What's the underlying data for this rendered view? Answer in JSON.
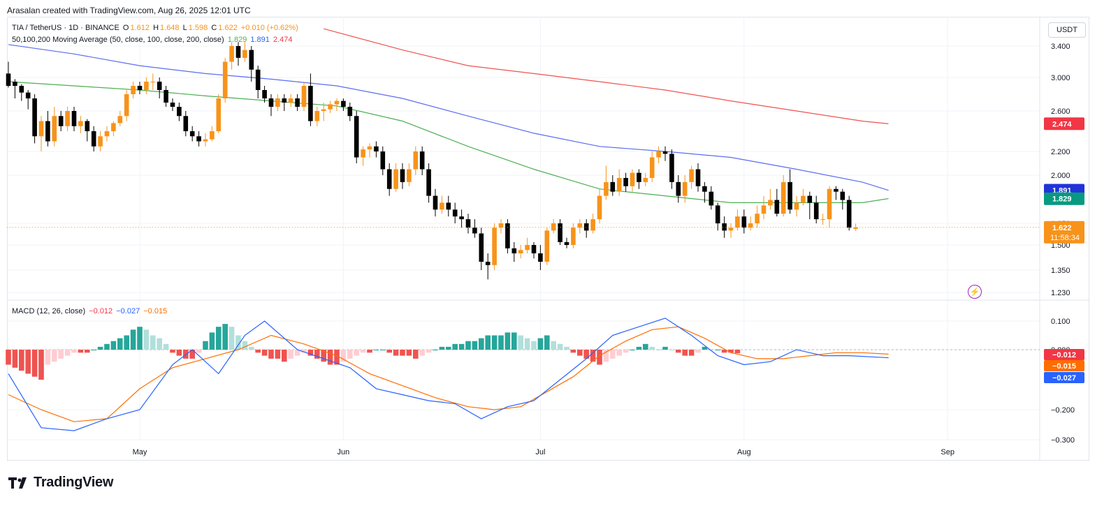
{
  "header": {
    "text": "Arasalan created with TradingView.com, Aug 26, 2025 12:01 UTC"
  },
  "symbol": {
    "name": "TIA / TetherUS · 1D · BINANCE",
    "o_label": "O",
    "o": "1.612",
    "h_label": "H",
    "h": "1.648",
    "l_label": "L",
    "l": "1.598",
    "c_label": "C",
    "c": "1.622",
    "change": "+0.010 (+0.62%)"
  },
  "ma_legend": {
    "label": "50,100,200 Moving Average (50, close, 100, close, 200, close)",
    "ma50": "1.829",
    "ma100": "1.891",
    "ma200": "2.474"
  },
  "macd_legend": {
    "label": "MACD (12, 26, close)",
    "hist": "−0.012",
    "macd": "−0.027",
    "signal": "−0.015"
  },
  "currency_button": "USDT",
  "brand": "TradingView",
  "colors": {
    "up": "#f7931a",
    "down": "#000000",
    "ma50": "#4caf50",
    "ma100": "#5b6cf0",
    "ma200": "#f0524f",
    "macd": "#2962ff",
    "signal": "#ff6d00",
    "hist_pos_strong": "#26a69a",
    "hist_pos_weak": "#b2dfdb",
    "hist_neg_strong": "#ef5350",
    "hist_neg_weak": "#ffcdd2"
  },
  "price_badges": {
    "ma200": {
      "value": "2.474",
      "color": "#f23645"
    },
    "ma100": {
      "value": "1.891",
      "color": "#2133d9"
    },
    "ma50": {
      "value": "1.829",
      "color": "#089981"
    },
    "last": {
      "value": "1.622",
      "countdown": "11:58:34",
      "color": "#f7931a"
    }
  },
  "macd_badges": [
    {
      "value": "−0.012",
      "color": "#f23645"
    },
    {
      "value": "−0.015",
      "color": "#ff6d00"
    },
    {
      "value": "−0.027",
      "color": "#2962ff"
    }
  ],
  "chart_data": {
    "type": "candlestick",
    "price_axis": {
      "ticks": [
        3.4,
        3.0,
        2.6,
        2.2,
        2.0,
        1.65,
        1.5,
        1.35,
        1.23
      ],
      "labels": [
        "3.400",
        "3.000",
        "2.600",
        "2.200",
        "2.000",
        "1.650",
        "1.500",
        "1.350",
        "1.230"
      ]
    },
    "macd_axis": {
      "ticks": [
        0.1,
        0.0,
        -0.2,
        -0.3
      ],
      "labels": [
        "0.100",
        "0.000",
        "−0.200",
        "−0.300"
      ]
    },
    "time_axis": {
      "labels": [
        "May",
        "Jun",
        "Jul",
        "Aug",
        "Sep"
      ],
      "label_days": [
        20,
        51,
        81,
        112,
        143
      ]
    },
    "candles": [
      [
        3.05,
        2.9,
        3.2,
        2.88
      ],
      [
        2.95,
        2.9,
        2.98,
        2.75
      ],
      [
        2.9,
        2.82,
        2.92,
        2.72
      ],
      [
        2.82,
        2.75,
        2.85,
        2.62
      ],
      [
        2.75,
        2.35,
        2.8,
        2.28
      ],
      [
        2.35,
        2.5,
        2.55,
        2.2
      ],
      [
        2.5,
        2.3,
        2.6,
        2.25
      ],
      [
        2.3,
        2.55,
        2.65,
        2.25
      ],
      [
        2.55,
        2.45,
        2.6,
        2.4
      ],
      [
        2.45,
        2.6,
        2.65,
        2.4
      ],
      [
        2.6,
        2.45,
        2.65,
        2.4
      ],
      [
        2.45,
        2.5,
        2.55,
        2.38
      ],
      [
        2.5,
        2.4,
        2.52,
        2.3
      ],
      [
        2.4,
        2.25,
        2.45,
        2.2
      ],
      [
        2.25,
        2.35,
        2.4,
        2.2
      ],
      [
        2.35,
        2.4,
        2.45,
        2.3
      ],
      [
        2.4,
        2.48,
        2.5,
        2.35
      ],
      [
        2.48,
        2.55,
        2.6,
        2.45
      ],
      [
        2.55,
        2.8,
        2.85,
        2.5
      ],
      [
        2.8,
        2.9,
        2.95,
        2.75
      ],
      [
        2.9,
        2.85,
        2.95,
        2.8
      ],
      [
        2.85,
        2.95,
        3.0,
        2.8
      ],
      [
        2.95,
        2.95,
        3.05,
        2.85
      ],
      [
        2.95,
        2.85,
        3.0,
        2.75
      ],
      [
        2.85,
        2.7,
        2.9,
        2.65
      ],
      [
        2.7,
        2.65,
        2.75,
        2.6
      ],
      [
        2.65,
        2.55,
        2.7,
        2.5
      ],
      [
        2.55,
        2.4,
        2.6,
        2.35
      ],
      [
        2.4,
        2.35,
        2.45,
        2.3
      ],
      [
        2.35,
        2.3,
        2.4,
        2.25
      ],
      [
        2.3,
        2.32,
        2.38,
        2.25
      ],
      [
        2.32,
        2.4,
        2.45,
        2.3
      ],
      [
        2.4,
        2.75,
        2.8,
        2.38
      ],
      [
        2.75,
        3.2,
        3.25,
        2.7
      ],
      [
        3.2,
        3.4,
        3.45,
        3.1
      ],
      [
        3.4,
        3.25,
        3.45,
        3.15
      ],
      [
        3.25,
        3.35,
        3.45,
        3.2
      ],
      [
        3.35,
        3.1,
        3.4,
        2.95
      ],
      [
        3.1,
        2.85,
        3.15,
        2.75
      ],
      [
        2.85,
        2.75,
        2.9,
        2.7
      ],
      [
        2.75,
        2.65,
        2.8,
        2.55
      ],
      [
        2.65,
        2.75,
        2.8,
        2.6
      ],
      [
        2.75,
        2.7,
        2.8,
        2.6
      ],
      [
        2.7,
        2.75,
        2.8,
        2.65
      ],
      [
        2.75,
        2.65,
        2.8,
        2.6
      ],
      [
        2.65,
        2.9,
        2.95,
        2.6
      ],
      [
        2.9,
        2.5,
        3.05,
        2.45
      ],
      [
        2.5,
        2.6,
        2.65,
        2.45
      ],
      [
        2.6,
        2.62,
        2.7,
        2.5
      ],
      [
        2.62,
        2.68,
        2.72,
        2.58
      ],
      [
        2.68,
        2.72,
        2.75,
        2.6
      ],
      [
        2.72,
        2.65,
        2.75,
        2.6
      ],
      [
        2.65,
        2.55,
        2.7,
        2.5
      ],
      [
        2.55,
        2.15,
        2.6,
        2.1
      ],
      [
        2.15,
        2.22,
        2.25,
        2.08
      ],
      [
        2.22,
        2.25,
        2.28,
        2.15
      ],
      [
        2.25,
        2.2,
        2.3,
        2.15
      ],
      [
        2.2,
        2.05,
        2.25,
        2.0
      ],
      [
        2.05,
        1.9,
        2.1,
        1.85
      ],
      [
        1.9,
        2.05,
        2.1,
        1.88
      ],
      [
        2.05,
        1.95,
        2.1,
        1.9
      ],
      [
        1.95,
        2.05,
        2.1,
        1.92
      ],
      [
        2.05,
        2.2,
        2.25,
        2.0
      ],
      [
        2.2,
        2.05,
        2.25,
        2.0
      ],
      [
        2.05,
        1.85,
        2.1,
        1.8
      ],
      [
        1.85,
        1.75,
        1.9,
        1.7
      ],
      [
        1.75,
        1.8,
        1.85,
        1.72
      ],
      [
        1.8,
        1.75,
        1.85,
        1.7
      ],
      [
        1.75,
        1.7,
        1.8,
        1.65
      ],
      [
        1.7,
        1.68,
        1.75,
        1.62
      ],
      [
        1.68,
        1.62,
        1.72,
        1.58
      ],
      [
        1.62,
        1.58,
        1.68,
        1.55
      ],
      [
        1.58,
        1.4,
        1.62,
        1.35
      ],
      [
        1.4,
        1.38,
        1.45,
        1.3
      ],
      [
        1.38,
        1.62,
        1.65,
        1.35
      ],
      [
        1.62,
        1.65,
        1.68,
        1.58
      ],
      [
        1.65,
        1.48,
        1.68,
        1.45
      ],
      [
        1.48,
        1.45,
        1.52,
        1.4
      ],
      [
        1.45,
        1.47,
        1.5,
        1.42
      ],
      [
        1.47,
        1.5,
        1.55,
        1.45
      ],
      [
        1.5,
        1.45,
        1.52,
        1.42
      ],
      [
        1.45,
        1.4,
        1.5,
        1.35
      ],
      [
        1.4,
        1.6,
        1.62,
        1.38
      ],
      [
        1.6,
        1.65,
        1.68,
        1.58
      ],
      [
        1.65,
        1.52,
        1.68,
        1.5
      ],
      [
        1.52,
        1.5,
        1.55,
        1.48
      ],
      [
        1.5,
        1.62,
        1.65,
        1.48
      ],
      [
        1.62,
        1.65,
        1.68,
        1.58
      ],
      [
        1.65,
        1.6,
        1.68,
        1.55
      ],
      [
        1.6,
        1.68,
        1.72,
        1.58
      ],
      [
        1.68,
        1.85,
        1.9,
        1.65
      ],
      [
        1.85,
        1.95,
        2.08,
        1.82
      ],
      [
        1.95,
        1.88,
        2.0,
        1.85
      ],
      [
        1.88,
        1.98,
        2.05,
        1.85
      ],
      [
        1.98,
        1.92,
        2.02,
        1.88
      ],
      [
        1.92,
        2.02,
        2.05,
        1.88
      ],
      [
        2.02,
        1.95,
        2.05,
        1.9
      ],
      [
        1.95,
        1.98,
        2.02,
        1.92
      ],
      [
        1.98,
        2.15,
        2.2,
        1.95
      ],
      [
        2.15,
        2.2,
        2.25,
        2.1
      ],
      [
        2.2,
        2.18,
        2.25,
        2.12
      ],
      [
        2.18,
        1.95,
        2.22,
        1.9
      ],
      [
        1.95,
        1.85,
        2.0,
        1.8
      ],
      [
        1.85,
        1.95,
        2.0,
        1.8
      ],
      [
        1.95,
        2.05,
        2.08,
        1.9
      ],
      [
        2.05,
        1.92,
        2.1,
        1.88
      ],
      [
        1.92,
        1.88,
        1.95,
        1.8
      ],
      [
        1.88,
        1.78,
        1.92,
        1.75
      ],
      [
        1.78,
        1.65,
        1.8,
        1.6
      ],
      [
        1.65,
        1.6,
        1.7,
        1.55
      ],
      [
        1.6,
        1.62,
        1.65,
        1.55
      ],
      [
        1.62,
        1.7,
        1.75,
        1.6
      ],
      [
        1.7,
        1.62,
        1.75,
        1.58
      ],
      [
        1.62,
        1.65,
        1.7,
        1.6
      ],
      [
        1.65,
        1.72,
        1.78,
        1.62
      ],
      [
        1.72,
        1.78,
        1.85,
        1.68
      ],
      [
        1.78,
        1.82,
        1.9,
        1.75
      ],
      [
        1.82,
        1.72,
        1.9,
        1.7
      ],
      [
        1.72,
        1.95,
        2.0,
        1.7
      ],
      [
        1.95,
        1.75,
        2.05,
        1.72
      ],
      [
        1.75,
        1.8,
        1.85,
        1.7
      ],
      [
        1.8,
        1.85,
        1.9,
        1.78
      ],
      [
        1.85,
        1.8,
        1.88,
        1.68
      ],
      [
        1.8,
        1.68,
        1.85,
        1.65
      ],
      [
        1.68,
        1.68,
        1.72,
        1.64
      ],
      [
        1.68,
        1.9,
        1.92,
        1.62
      ],
      [
        1.9,
        1.88,
        1.92,
        1.82
      ],
      [
        1.88,
        1.82,
        1.9,
        1.75
      ],
      [
        1.82,
        1.62,
        1.85,
        1.6
      ],
      [
        1.612,
        1.622,
        1.648,
        1.598
      ]
    ],
    "ma50": [
      [
        0,
        2.95
      ],
      [
        10,
        2.9
      ],
      [
        20,
        2.85
      ],
      [
        30,
        2.78
      ],
      [
        40,
        2.72
      ],
      [
        50,
        2.66
      ],
      [
        60,
        2.5
      ],
      [
        70,
        2.25
      ],
      [
        80,
        2.05
      ],
      [
        90,
        1.9
      ],
      [
        100,
        1.85
      ],
      [
        110,
        1.8
      ],
      [
        120,
        1.8
      ],
      [
        130,
        1.8
      ],
      [
        134,
        1.83
      ]
    ],
    "ma100": [
      [
        0,
        3.42
      ],
      [
        10,
        3.3
      ],
      [
        20,
        3.15
      ],
      [
        30,
        3.05
      ],
      [
        40,
        2.98
      ],
      [
        50,
        2.9
      ],
      [
        60,
        2.75
      ],
      [
        70,
        2.55
      ],
      [
        80,
        2.38
      ],
      [
        90,
        2.25
      ],
      [
        100,
        2.2
      ],
      [
        110,
        2.15
      ],
      [
        120,
        2.05
      ],
      [
        130,
        1.95
      ],
      [
        134,
        1.89
      ]
    ],
    "ma200": [
      [
        48,
        3.62
      ],
      [
        60,
        3.35
      ],
      [
        70,
        3.15
      ],
      [
        80,
        3.05
      ],
      [
        90,
        2.95
      ],
      [
        100,
        2.85
      ],
      [
        110,
        2.72
      ],
      [
        120,
        2.6
      ],
      [
        130,
        2.5
      ],
      [
        134,
        2.474
      ]
    ],
    "macd": [
      [
        0,
        -0.08
      ],
      [
        5,
        -0.26
      ],
      [
        10,
        -0.27
      ],
      [
        15,
        -0.23
      ],
      [
        20,
        -0.2
      ],
      [
        25,
        -0.05
      ],
      [
        28,
        0.0
      ],
      [
        32,
        -0.08
      ],
      [
        36,
        0.05
      ],
      [
        39,
        0.1
      ],
      [
        44,
        0.0
      ],
      [
        48,
        -0.03
      ],
      [
        52,
        -0.06
      ],
      [
        56,
        -0.13
      ],
      [
        60,
        -0.15
      ],
      [
        64,
        -0.17
      ],
      [
        68,
        -0.18
      ],
      [
        72,
        -0.23
      ],
      [
        76,
        -0.19
      ],
      [
        80,
        -0.17
      ],
      [
        84,
        -0.1
      ],
      [
        88,
        -0.03
      ],
      [
        92,
        0.05
      ],
      [
        96,
        0.08
      ],
      [
        100,
        0.11
      ],
      [
        104,
        0.05
      ],
      [
        108,
        -0.02
      ],
      [
        112,
        -0.05
      ],
      [
        116,
        -0.04
      ],
      [
        120,
        0.0
      ],
      [
        124,
        -0.02
      ],
      [
        128,
        -0.02
      ],
      [
        134,
        -0.027
      ]
    ],
    "signal": [
      [
        0,
        -0.15
      ],
      [
        5,
        -0.2
      ],
      [
        10,
        -0.24
      ],
      [
        15,
        -0.23
      ],
      [
        20,
        -0.13
      ],
      [
        25,
        -0.06
      ],
      [
        30,
        -0.03
      ],
      [
        35,
        0.0
      ],
      [
        40,
        0.05
      ],
      [
        45,
        0.02
      ],
      [
        50,
        -0.02
      ],
      [
        55,
        -0.08
      ],
      [
        60,
        -0.12
      ],
      [
        65,
        -0.16
      ],
      [
        70,
        -0.19
      ],
      [
        74,
        -0.2
      ],
      [
        78,
        -0.19
      ],
      [
        82,
        -0.14
      ],
      [
        86,
        -0.09
      ],
      [
        90,
        -0.02
      ],
      [
        94,
        0.03
      ],
      [
        98,
        0.07
      ],
      [
        102,
        0.08
      ],
      [
        106,
        0.04
      ],
      [
        110,
        -0.01
      ],
      [
        114,
        -0.03
      ],
      [
        118,
        -0.03
      ],
      [
        122,
        -0.02
      ],
      [
        126,
        -0.01
      ],
      [
        130,
        -0.01
      ],
      [
        134,
        -0.015
      ]
    ],
    "histogram": [
      -0.05,
      -0.06,
      -0.07,
      -0.08,
      -0.09,
      -0.1,
      -0.05,
      -0.04,
      -0.03,
      -0.02,
      -0.01,
      -0.01,
      -0.01,
      0.0,
      0.01,
      0.02,
      0.03,
      0.04,
      0.05,
      0.07,
      0.08,
      0.07,
      0.05,
      0.04,
      0.02,
      -0.01,
      -0.02,
      -0.03,
      -0.03,
      -0.01,
      0.03,
      0.06,
      0.08,
      0.09,
      0.08,
      0.05,
      0.03,
      0.01,
      -0.01,
      -0.02,
      -0.03,
      -0.03,
      -0.04,
      -0.03,
      -0.02,
      -0.01,
      -0.02,
      -0.03,
      -0.04,
      -0.05,
      -0.05,
      -0.04,
      -0.03,
      -0.02,
      -0.01,
      -0.01,
      0.0,
      0.0,
      -0.01,
      -0.02,
      -0.02,
      -0.02,
      -0.03,
      -0.02,
      -0.01,
      0.0,
      0.01,
      0.01,
      0.02,
      0.02,
      0.03,
      0.03,
      0.04,
      0.05,
      0.05,
      0.05,
      0.06,
      0.06,
      0.05,
      0.04,
      0.03,
      0.04,
      0.05,
      0.03,
      0.02,
      0.01,
      -0.01,
      -0.02,
      -0.03,
      -0.04,
      -0.05,
      -0.04,
      -0.03,
      -0.02,
      -0.01,
      0.0,
      0.01,
      0.02,
      0.01,
      0.0,
      0.01,
      0.0,
      -0.01,
      -0.02,
      -0.02,
      -0.01,
      0.01,
      0.0,
      0.0,
      -0.01,
      -0.01,
      -0.012
    ]
  }
}
